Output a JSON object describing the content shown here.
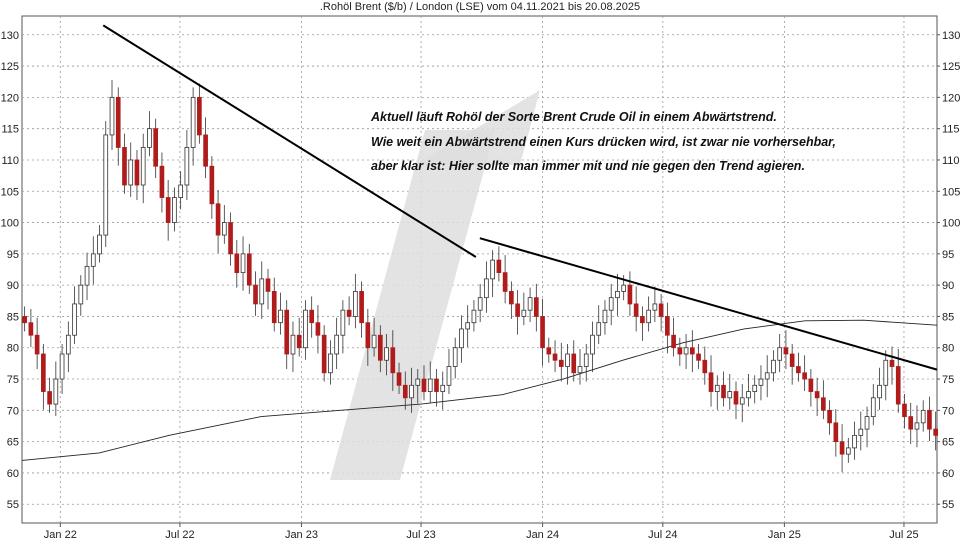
{
  "chart_data": {
    "type": "candlestick",
    "title": ".Rohöl Brent ($/b) / London (LSE) vom 04.11.2021 bis 20.08.2025",
    "ylim": [
      52,
      133
    ],
    "y_ticks": [
      55,
      60,
      65,
      70,
      75,
      80,
      85,
      90,
      95,
      100,
      105,
      110,
      115,
      120,
      125,
      130
    ],
    "x_ticks": [
      {
        "label": "Jan 22",
        "date": "2022-01-01"
      },
      {
        "label": "Jul 22",
        "date": "2022-07-01"
      },
      {
        "label": "Jan 23",
        "date": "2023-01-01"
      },
      {
        "label": "Jul 23",
        "date": "2023-07-01"
      },
      {
        "label": "Jan 24",
        "date": "2024-01-01"
      },
      {
        "label": "Jul 24",
        "date": "2024-07-01"
      },
      {
        "label": "Jan 25",
        "date": "2025-01-01"
      },
      {
        "label": "Jul 25",
        "date": "2025-07-01"
      }
    ],
    "grid": true,
    "annotations": [
      "Aktuell läuft Rohöl der Sorte Brent Crude Oil in einem Abwärtstrend.",
      "Wie weit ein Abwärtstrend einen Kurs drücken wird, ist zwar nie vorhersehbar,",
      "aber klar ist: Hier sollte man immer mit und nie gegen den Trend agieren."
    ],
    "candles_weekly_close": [
      84,
      82,
      79,
      73,
      71,
      75,
      79,
      82,
      87,
      90,
      93,
      95,
      98,
      114,
      120,
      112,
      106,
      110,
      106,
      112,
      115,
      109,
      104,
      100,
      104,
      106,
      112,
      120,
      114,
      109,
      103,
      98,
      100,
      95,
      92,
      95,
      90,
      87,
      91,
      89,
      84,
      86,
      79,
      82,
      80,
      86,
      84,
      82,
      76,
      79,
      82,
      86,
      85,
      89,
      84,
      80,
      82,
      78,
      80,
      76,
      74,
      72,
      74,
      75,
      73,
      75,
      73,
      74,
      77,
      80,
      83,
      84,
      86,
      88,
      91,
      94,
      92,
      89,
      87,
      85,
      86,
      88,
      85,
      80,
      79,
      78,
      77,
      79,
      76,
      77,
      79,
      82,
      84,
      86,
      88,
      89,
      90,
      87,
      85,
      84,
      86,
      87,
      85,
      82,
      80,
      79,
      80,
      79,
      78,
      76,
      73,
      74,
      72,
      73,
      71,
      72,
      73,
      74,
      75,
      76,
      78,
      80,
      79,
      77,
      76,
      75,
      73,
      72,
      70,
      68,
      65,
      63,
      64,
      66,
      67,
      69,
      72,
      74,
      78,
      77,
      71,
      69,
      67,
      68,
      70,
      67,
      66
    ],
    "trendlines": [
      {
        "from": {
          "date": "2022-03-07",
          "value": 131.5
        },
        "to": {
          "date": "2023-09-22",
          "value": 94.5
        }
      },
      {
        "from": {
          "date": "2023-09-28",
          "value": 97.5
        },
        "to": {
          "date": "2025-08-20",
          "value": 76.5
        }
      }
    ],
    "moving_average_points": [
      {
        "date": "2021-11-04",
        "value": 62.0
      },
      {
        "date": "2022-03-01",
        "value": 63.2
      },
      {
        "date": "2022-06-15",
        "value": 66.0
      },
      {
        "date": "2022-11-01",
        "value": 69.0
      },
      {
        "date": "2023-03-01",
        "value": 70.0
      },
      {
        "date": "2023-07-01",
        "value": 71.0
      },
      {
        "date": "2023-11-01",
        "value": 72.5
      },
      {
        "date": "2024-02-01",
        "value": 75.0
      },
      {
        "date": "2024-05-01",
        "value": 78.0
      },
      {
        "date": "2024-08-01",
        "value": 80.8
      },
      {
        "date": "2024-11-01",
        "value": 83.0
      },
      {
        "date": "2025-02-01",
        "value": 84.3
      },
      {
        "date": "2025-05-01",
        "value": 84.4
      },
      {
        "date": "2025-08-20",
        "value": 83.6
      }
    ],
    "colors": {
      "bullish": "#ffffff",
      "bearish": "#b01c1c",
      "candle_outline": "#333333",
      "trendline": "#000000",
      "moving_average": "#222222",
      "watermark": "#dedede"
    }
  }
}
